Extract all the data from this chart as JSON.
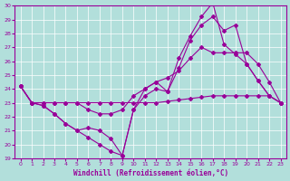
{
  "xlabel": "Windchill (Refroidissement éolien,°C)",
  "x_ticks": [
    0,
    1,
    2,
    3,
    4,
    5,
    6,
    7,
    8,
    9,
    10,
    11,
    12,
    13,
    14,
    15,
    16,
    17,
    18,
    19,
    20,
    21,
    22,
    23
  ],
  "ylim": [
    19,
    30
  ],
  "xlim": [
    -0.5,
    23.5
  ],
  "y_ticks": [
    19,
    20,
    21,
    22,
    23,
    24,
    25,
    26,
    27,
    28,
    29,
    30
  ],
  "bg_color": "#b2dfdb",
  "grid_color": "#ffffff",
  "line_color": "#990099",
  "lines": [
    [
      24.2,
      23.0,
      23.0,
      23.0,
      23.0,
      23.0,
      23.0,
      23.0,
      23.0,
      23.0,
      23.0,
      23.0,
      23.0,
      23.1,
      23.2,
      23.3,
      23.4,
      23.5,
      23.5,
      23.5,
      23.5,
      23.5,
      23.5,
      23.0
    ],
    [
      24.2,
      23.0,
      23.0,
      23.0,
      23.0,
      23.0,
      22.5,
      22.2,
      22.2,
      22.5,
      23.5,
      24.0,
      24.5,
      24.8,
      25.3,
      26.2,
      27.0,
      26.6,
      26.6,
      26.6,
      26.6,
      25.8,
      24.5,
      23.0
    ],
    [
      24.2,
      23.0,
      22.8,
      22.2,
      21.5,
      21.0,
      21.2,
      21.0,
      20.4,
      19.2,
      22.5,
      23.5,
      24.0,
      23.8,
      25.5,
      27.5,
      28.6,
      29.2,
      28.2,
      28.6,
      25.8,
      24.6,
      23.5,
      23.0
    ],
    [
      24.2,
      23.0,
      22.8,
      22.2,
      21.5,
      21.0,
      20.5,
      20.0,
      19.5,
      19.2,
      22.5,
      24.0,
      24.5,
      23.8,
      26.2,
      27.8,
      29.2,
      30.2,
      27.2,
      26.5,
      25.8,
      24.6,
      23.5,
      23.0
    ]
  ]
}
